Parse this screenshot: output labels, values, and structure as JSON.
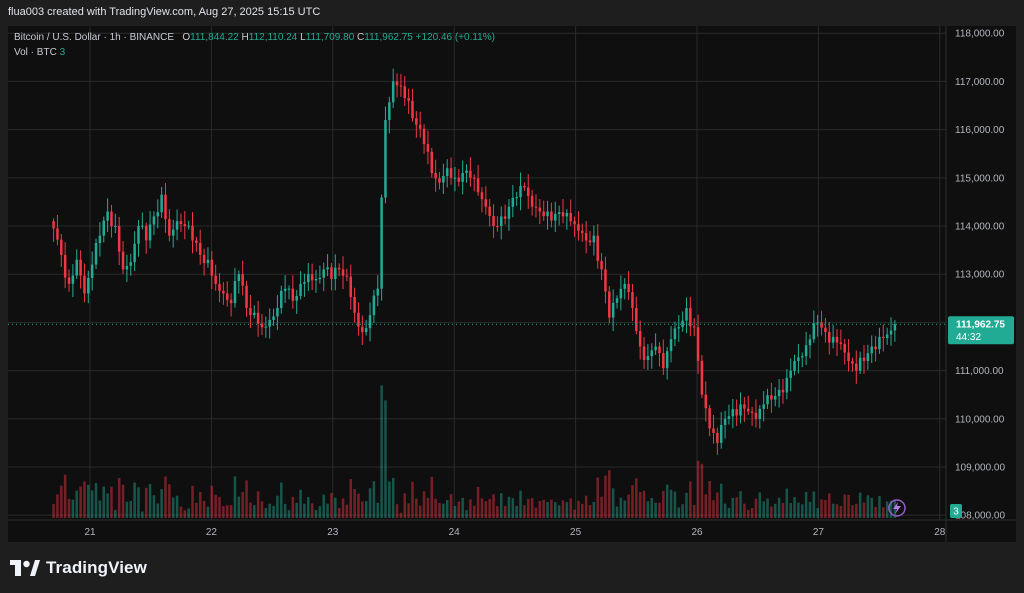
{
  "header": {
    "attribution": "flua003 created with TradingView.com, Aug 27, 2025 15:15 UTC"
  },
  "legend": {
    "symbol": "Bitcoin / U.S. Dollar · 1h · BINANCE",
    "o_label": "O",
    "o_value": "111,844.22",
    "h_label": "H",
    "h_value": "112,110.24",
    "l_label": "L",
    "l_value": "111,709.80",
    "c_label": "C",
    "c_value": "111,962.75",
    "change": "+120.46 (+0.11%)",
    "vol_label": "Vol · BTC",
    "vol_value": "3"
  },
  "brand": {
    "name": "TradingView"
  },
  "colors": {
    "up": "#22ab94",
    "down": "#f23645",
    "grid": "#2a2a2a",
    "axis_text": "#b2b5be",
    "price_tag_bg": "#22ab94"
  },
  "chart_data": {
    "type": "candlestick",
    "title": "Bitcoin / U.S. Dollar · 1h · BINANCE",
    "xlabel": "",
    "ylabel": "",
    "x_tick_labels": [
      "21",
      "22",
      "23",
      "24",
      "25",
      "26",
      "27",
      "28"
    ],
    "y_tick_labels": [
      "108,000.00",
      "109,000.00",
      "110,000.00",
      "111,000.00",
      "112,000.00",
      "113,000.00",
      "114,000.00",
      "115,000.00",
      "116,000.00",
      "117,000.00",
      "118,000.00"
    ],
    "y_ticks": [
      108000,
      109000,
      110000,
      111000,
      112000,
      113000,
      114000,
      115000,
      116000,
      117000,
      118000
    ],
    "ylim": [
      107900,
      118150
    ],
    "last_price": 111962.75,
    "last_price_label": "111,962.75",
    "countdown_label": "44:32",
    "volume_label": "3",
    "grid": true,
    "start_day": 20.7,
    "candle_hours": 1,
    "anchor_closes": [
      113950,
      113400,
      112800,
      113300,
      112600,
      113200,
      113800,
      114300,
      114000,
      113100,
      113250,
      114000,
      113700,
      114200,
      114650,
      113800,
      114100,
      114000,
      113700,
      113400,
      113300,
      112800,
      112600,
      112400,
      113000,
      112300,
      112200,
      111900,
      112050,
      112300,
      112700,
      112450,
      112800,
      113000,
      112900,
      113100,
      112900,
      113100,
      112950,
      112200,
      111800,
      112150,
      112700,
      116200,
      117000,
      116900,
      116600,
      116100,
      115700,
      115100,
      114900,
      115200,
      115000,
      115100,
      115000,
      114700,
      114400,
      114000,
      114200,
      114400,
      114600,
      114800,
      114400,
      114300,
      114300,
      114250,
      114200,
      114100,
      113900,
      113700,
      113800,
      113100,
      112100,
      112500,
      112800,
      112300,
      111500,
      111300,
      111500,
      111050,
      111650,
      111900,
      112300,
      111900,
      110500,
      109800,
      109500,
      110000,
      110200,
      110300,
      110150,
      110000,
      110300,
      110400,
      110600,
      110850,
      111200,
      111300,
      111650,
      112000,
      111800,
      111700,
      111550,
      111200,
      111000,
      111200,
      111500,
      111700,
      111750,
      111962.75
    ]
  }
}
